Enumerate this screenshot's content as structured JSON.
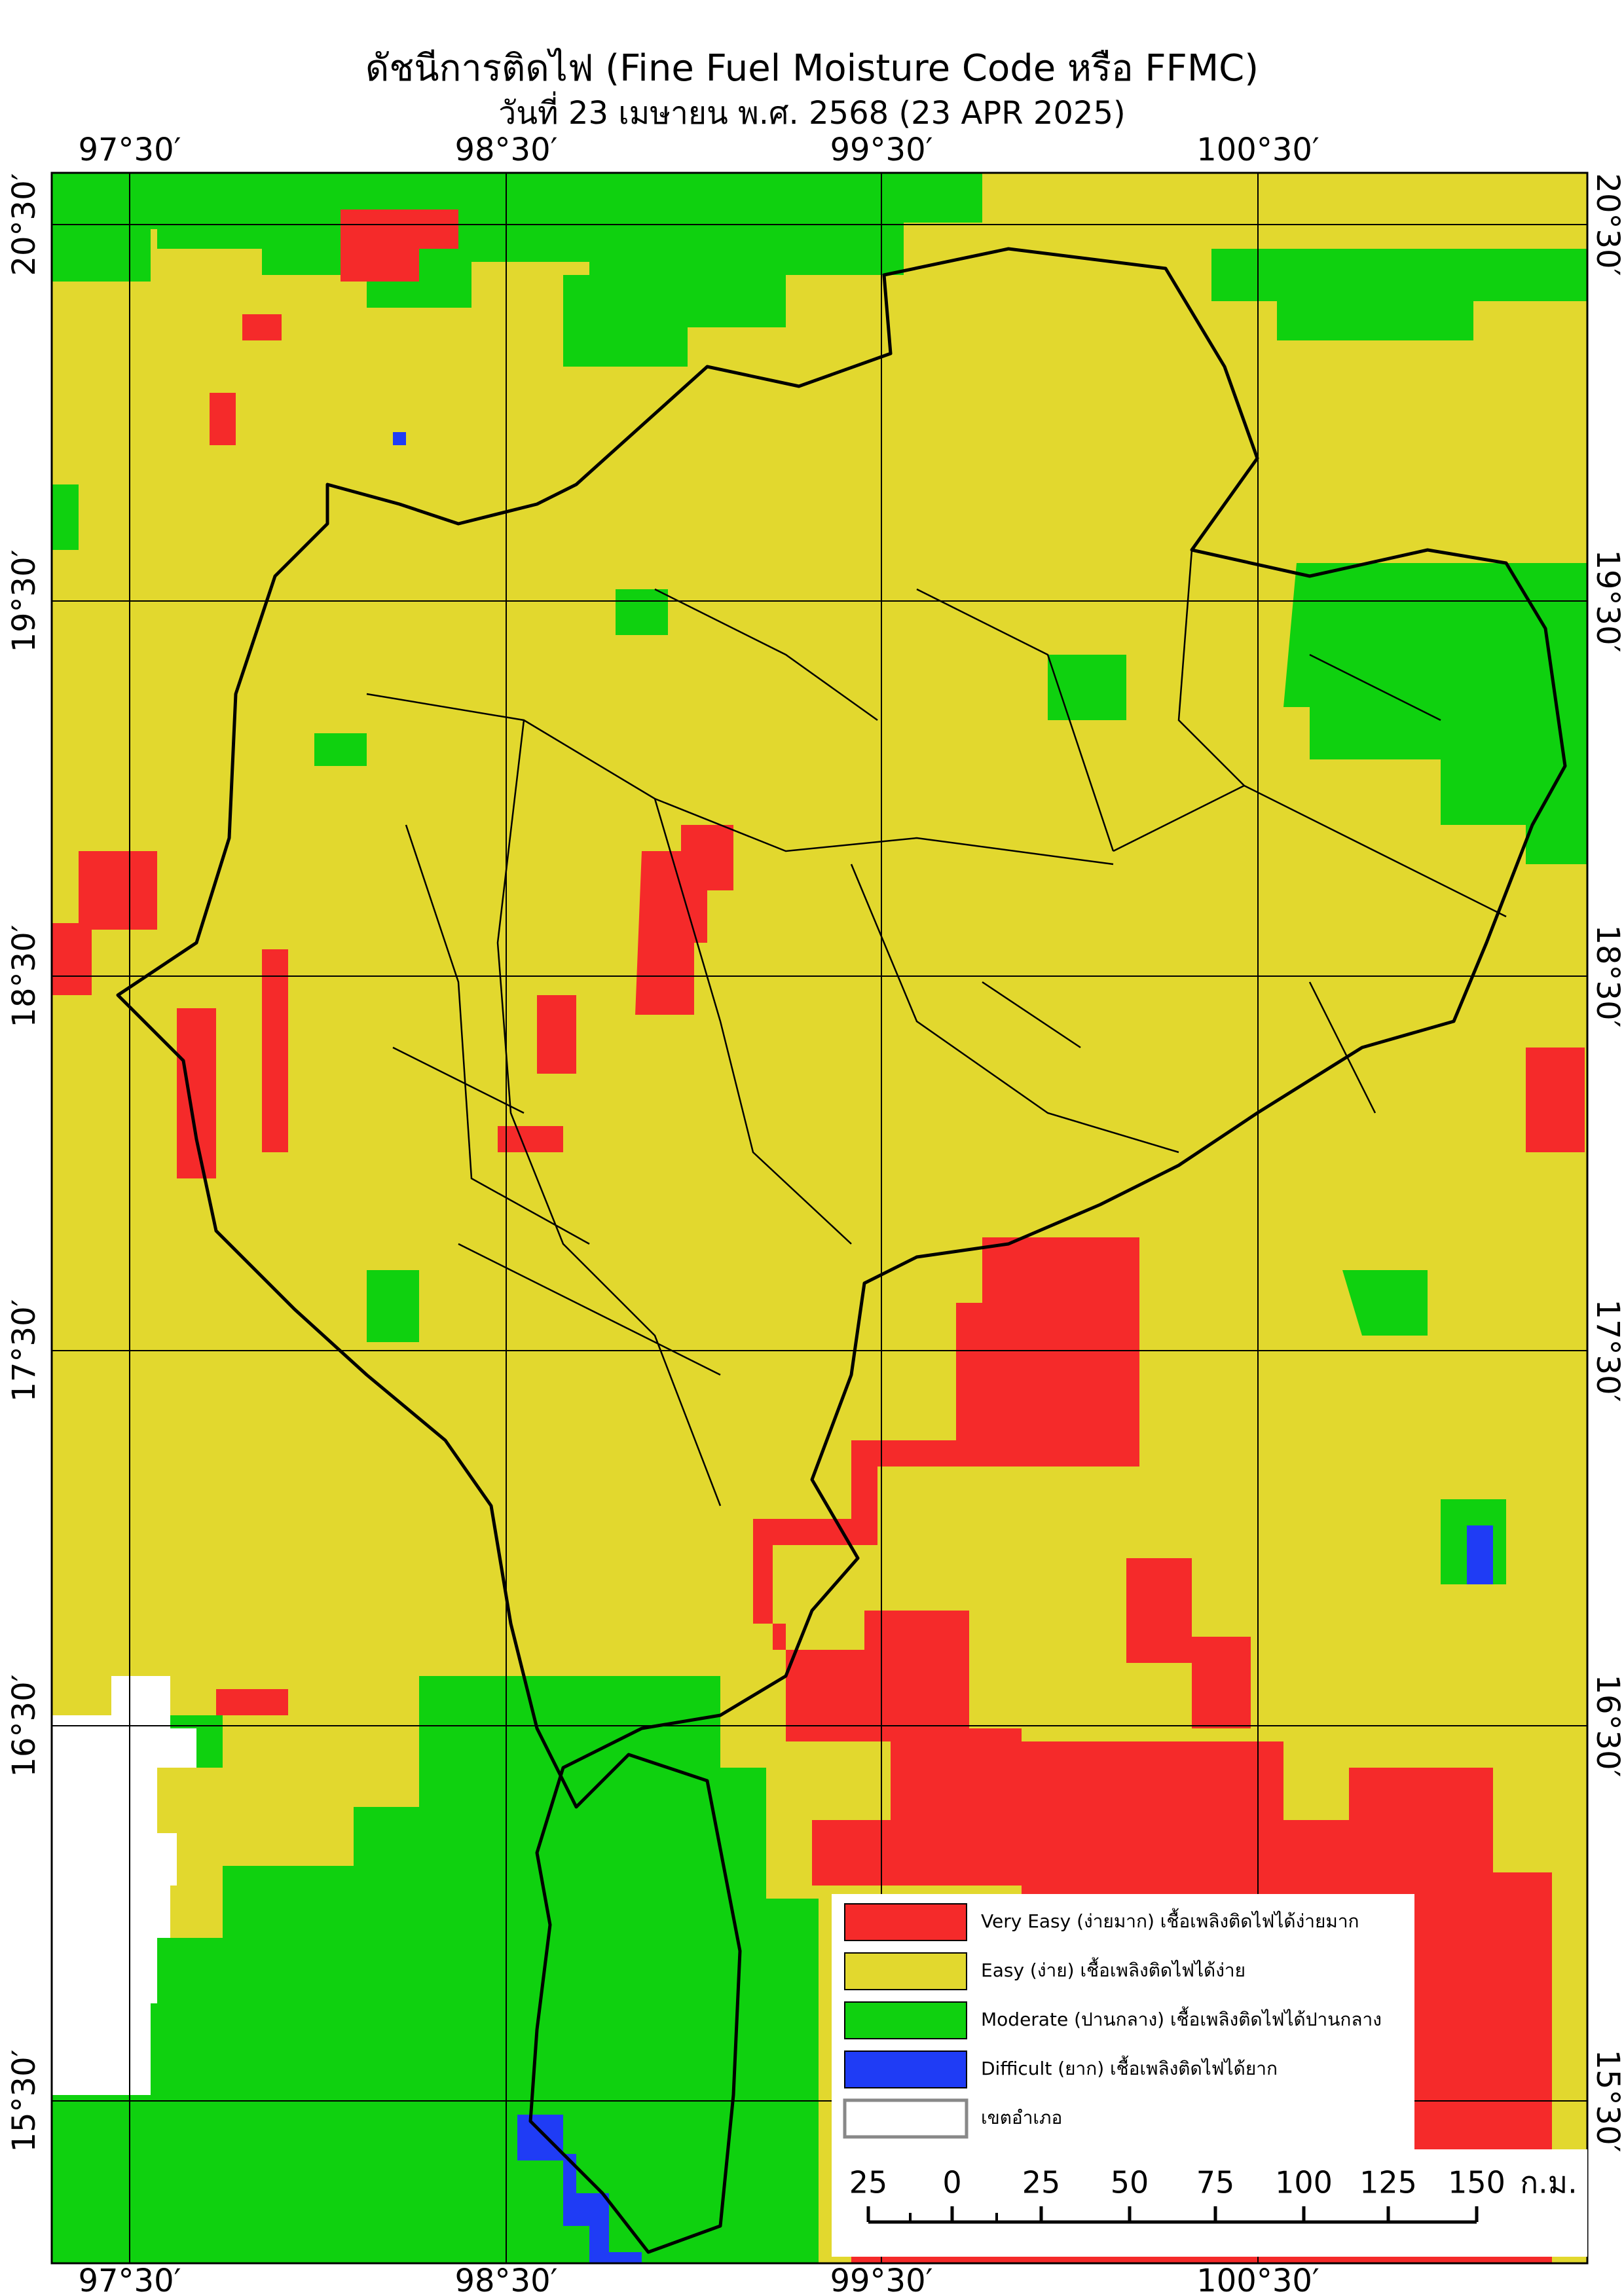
{
  "map": {
    "title": "ดัชนีการติดไฟ (Fine Fuel Moisture Code หรือ FFMC)",
    "subtitle": "วันที่ 23 เมษายน พ.ศ. 2568 (23 APR 2025)",
    "lon_labels": [
      "97°30′",
      "98°30′",
      "99°30′",
      "100°30′"
    ],
    "lat_labels": [
      "20°30′",
      "19°30′",
      "18°30′",
      "17°30′",
      "16°30′",
      "15°30′"
    ],
    "legend": [
      {
        "color": "#f52a2a",
        "label": "Very Easy (ง่ายมาก) เชื้อเพลิงติดไฟได้ง่ายมาก"
      },
      {
        "color": "#e2d82e",
        "label": "Easy (ง่าย) เชื้อเพลิงติดไฟได้ง่าย"
      },
      {
        "color": "#0fd10f",
        "label": "Moderate (ปานกลาง) เชื้อเพลิงติดไฟได้ปานกลาง"
      },
      {
        "color": "#1f3cf5",
        "label": "Difficult (ยาก) เชื้อเพลิงติดไฟได้ยาก"
      },
      {
        "color": "#ffffff",
        "label": "เขตอำเภอ"
      }
    ],
    "scale_labels": [
      "25",
      "0",
      "25",
      "50",
      "75",
      "100",
      "125",
      "150"
    ],
    "scale_unit": "ก.ม."
  }
}
